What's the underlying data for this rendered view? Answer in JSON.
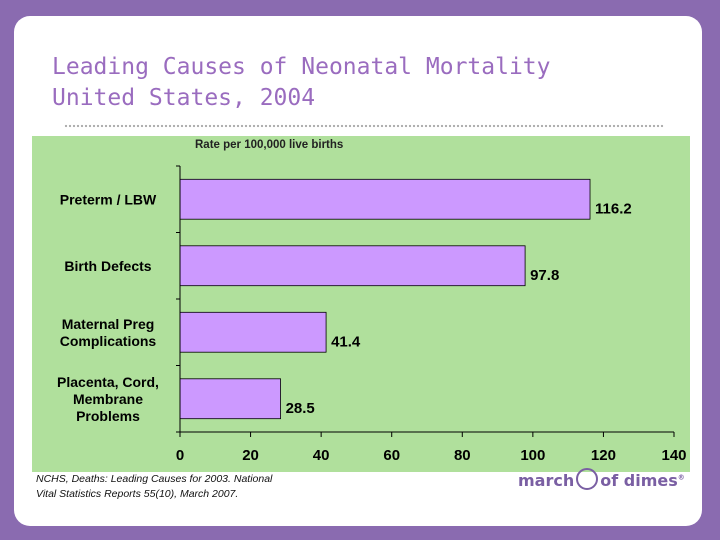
{
  "slide": {
    "title_line1": "Leading Causes of Neonatal Mortality",
    "title_line2": "United States, 2004",
    "source_line1": "NCHS, Deaths: Leading Causes for 2003. National",
    "source_line2": "Vital Statistics Reports 55(10), March 2007.",
    "logo_part1": "march",
    "logo_part2": "of dimes",
    "logo_mark": "®"
  },
  "chart_data": {
    "type": "bar",
    "orientation": "horizontal",
    "title": "Rate per 100,000 live births",
    "categories": [
      [
        "Preterm / LBW"
      ],
      [
        "Birth Defects"
      ],
      [
        "Maternal Preg",
        "Complications"
      ],
      [
        "Placenta, Cord,",
        "Membrane",
        "Problems"
      ]
    ],
    "values": [
      116.2,
      97.8,
      41.4,
      28.5
    ],
    "value_labels": [
      "116.2",
      "97.8",
      "41.4",
      "28.5"
    ],
    "xlim": [
      0,
      140
    ],
    "xticks": [
      0,
      20,
      40,
      60,
      80,
      100,
      120,
      140
    ],
    "grid": false,
    "colors": {
      "bar": "#cc99ff",
      "bar_edge": "#000000",
      "plot_bg": "#b0e09c",
      "axis": "#000000"
    }
  }
}
